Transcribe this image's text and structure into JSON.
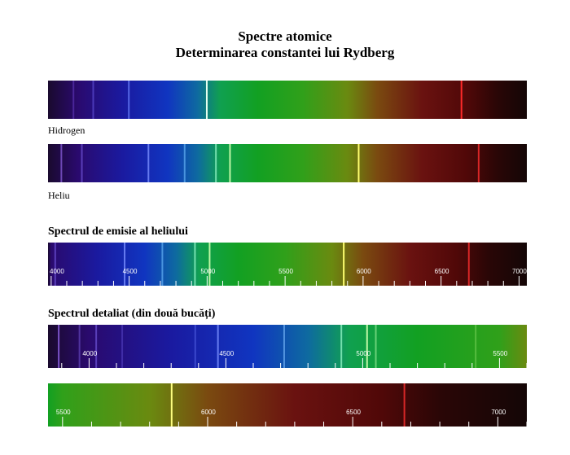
{
  "title": {
    "line1": "Spectre atomice",
    "line2": "Determinarea constantei lui Rydberg"
  },
  "spectra": {
    "hydrogen": {
      "label": "Hidrogen",
      "range": [
        3800,
        7000
      ],
      "lines": [
        {
          "wl": 3970,
          "intensity": 0.35,
          "color": "#8a5cff"
        },
        {
          "wl": 4102,
          "intensity": 0.45,
          "color": "#7a6cff"
        },
        {
          "wl": 4340,
          "intensity": 0.7,
          "color": "#6f86ff"
        },
        {
          "wl": 4861,
          "intensity": 1.0,
          "color": "#e6fff0"
        },
        {
          "wl": 6563,
          "intensity": 1.0,
          "color": "#ff2a2a"
        }
      ]
    },
    "helium": {
      "label": "Heliu",
      "range": [
        3800,
        7000
      ],
      "lines": [
        {
          "wl": 3889,
          "intensity": 0.6,
          "color": "#a070ff"
        },
        {
          "wl": 4026,
          "intensity": 0.5,
          "color": "#8a70ff"
        },
        {
          "wl": 4471,
          "intensity": 0.8,
          "color": "#7a90ff"
        },
        {
          "wl": 4713,
          "intensity": 0.6,
          "color": "#70c0ff"
        },
        {
          "wl": 4922,
          "intensity": 0.7,
          "color": "#a0ffd0"
        },
        {
          "wl": 5016,
          "intensity": 0.9,
          "color": "#d0ffb0"
        },
        {
          "wl": 5876,
          "intensity": 1.0,
          "color": "#ffff70"
        },
        {
          "wl": 6678,
          "intensity": 0.8,
          "color": "#ff3030"
        }
      ]
    },
    "emission": {
      "label": "Spectrul de emisie al heliului",
      "range": [
        3980,
        7050
      ],
      "ticks": [
        4000,
        4500,
        5000,
        5500,
        6000,
        6500,
        7000
      ],
      "tick_labels": [
        "4000",
        "4500",
        "5000",
        "5500",
        "6000",
        "6500",
        "7000"
      ],
      "lines": [
        {
          "wl": 4026,
          "intensity": 0.5,
          "color": "#8a70ff"
        },
        {
          "wl": 4471,
          "intensity": 0.8,
          "color": "#7a90ff"
        },
        {
          "wl": 4713,
          "intensity": 0.6,
          "color": "#70c0ff"
        },
        {
          "wl": 4922,
          "intensity": 0.7,
          "color": "#a0ffd0"
        },
        {
          "wl": 5016,
          "intensity": 0.9,
          "color": "#d0ffb0"
        },
        {
          "wl": 5876,
          "intensity": 1.0,
          "color": "#ffff70"
        },
        {
          "wl": 6678,
          "intensity": 0.8,
          "color": "#ff3030"
        }
      ]
    },
    "detail_a": {
      "label": "Spectrul detaliat (din două bucăți)",
      "range": [
        3850,
        5600
      ],
      "ticks": [
        4000,
        4500,
        5000,
        5500
      ],
      "tick_labels": [
        "4000",
        "4500",
        "5000",
        "5500"
      ],
      "lines": [
        {
          "wl": 3889,
          "intensity": 0.7,
          "color": "#a070ff"
        },
        {
          "wl": 3965,
          "intensity": 0.4,
          "color": "#9070ff"
        },
        {
          "wl": 4026,
          "intensity": 0.5,
          "color": "#8a70ff"
        },
        {
          "wl": 4121,
          "intensity": 0.3,
          "color": "#8070ff"
        },
        {
          "wl": 4388,
          "intensity": 0.4,
          "color": "#7080ff"
        },
        {
          "wl": 4471,
          "intensity": 0.8,
          "color": "#7a90ff"
        },
        {
          "wl": 4713,
          "intensity": 0.6,
          "color": "#80c0ff"
        },
        {
          "wl": 4922,
          "intensity": 0.7,
          "color": "#a0ffd0"
        },
        {
          "wl": 5016,
          "intensity": 0.9,
          "color": "#d0ffb0"
        },
        {
          "wl": 5048,
          "intensity": 0.5,
          "color": "#c0ffb0"
        },
        {
          "wl": 5413,
          "intensity": 0.3,
          "color": "#c0ff90"
        }
      ]
    },
    "detail_b": {
      "range": [
        5450,
        7100
      ],
      "ticks": [
        5500,
        6000,
        6500,
        7000
      ],
      "tick_labels": [
        "5500",
        "6000",
        "6500",
        "7000"
      ],
      "lines": [
        {
          "wl": 5876,
          "intensity": 1.0,
          "color": "#ffff80"
        },
        {
          "wl": 6678,
          "intensity": 0.8,
          "color": "#ff3030"
        }
      ]
    }
  }
}
